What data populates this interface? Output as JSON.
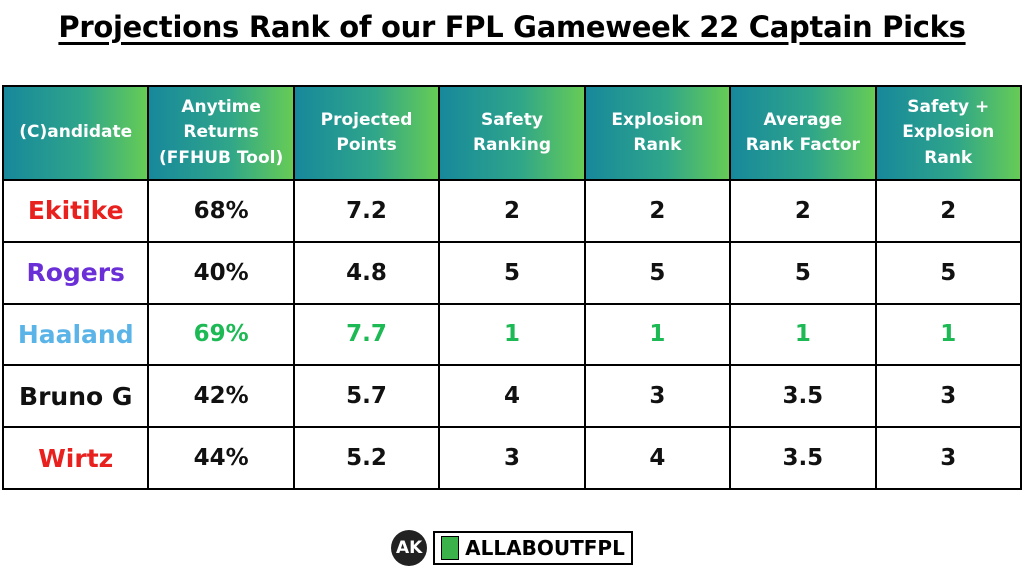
{
  "title": "Projections Rank of our FPL Gameweek 22 Captain Picks",
  "table": {
    "headers": [
      "(C)andidate",
      "Anytime Returns (FFHUB Tool)",
      "Projected Points",
      "Safety Ranking",
      "Explosion Rank",
      "Average Rank Factor",
      "Safety + Explosion Rank"
    ],
    "rows": [
      [
        "Ekitike",
        "68%",
        "7.2",
        "2",
        "2",
        "2",
        "2"
      ],
      [
        "Rogers",
        "40%",
        "4.8",
        "5",
        "5",
        "5",
        "5"
      ],
      [
        "Haaland",
        "69%",
        "7.7",
        "1",
        "1",
        "1",
        "1"
      ],
      [
        "Bruno G",
        "42%",
        "5.7",
        "4",
        "3",
        "3.5",
        "3"
      ],
      [
        "Wirtz",
        "44%",
        "5.2",
        "3",
        "4",
        "3.5",
        "3"
      ]
    ]
  },
  "footer": {
    "icon": "AK",
    "brand": "ALLABOUTFPL"
  }
}
